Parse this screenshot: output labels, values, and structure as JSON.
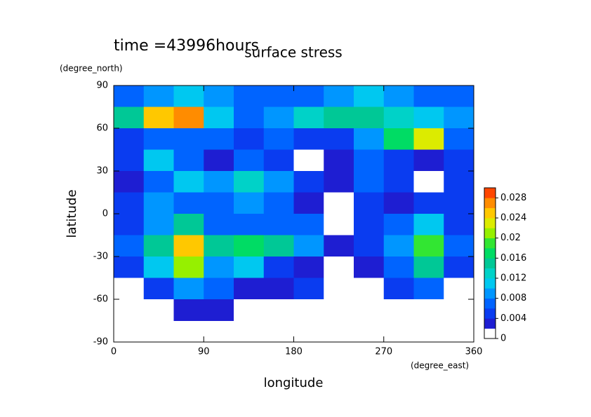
{
  "chart_data": {
    "type": "heatmap",
    "title": "surface stress",
    "subtitle": "time =43996hours",
    "x_label": "longitude",
    "x_unit": "(degree_east)",
    "y_label": "latitude",
    "y_unit": "(degree_north)",
    "xlim": [
      0,
      360
    ],
    "xticks": [
      0,
      90,
      180,
      270,
      360
    ],
    "ylim": [
      -90,
      90
    ],
    "yticks": [
      -90,
      -60,
      -30,
      0,
      30,
      60,
      90
    ],
    "x": [
      15,
      45,
      75,
      105,
      135,
      165,
      195,
      225,
      255,
      285,
      315,
      345
    ],
    "y": [
      82.5,
      67.5,
      52.5,
      37.5,
      22.5,
      7.5,
      -7.5,
      -22.5,
      -37.5,
      -52.5,
      -67.5
    ],
    "z": [
      [
        0.006,
        0.008,
        0.01,
        0.008,
        0.006,
        0.006,
        0.006,
        0.008,
        0.01,
        0.008,
        0.006,
        0.006
      ],
      [
        0.014,
        0.024,
        0.026,
        0.01,
        0.006,
        0.008,
        0.012,
        0.014,
        0.014,
        0.012,
        0.01,
        0.008
      ],
      [
        0.004,
        0.006,
        0.006,
        0.006,
        0.004,
        0.006,
        0.004,
        0.004,
        0.008,
        0.016,
        0.022,
        0.006
      ],
      [
        0.004,
        0.01,
        0.006,
        0.002,
        0.006,
        0.004,
        0,
        0.002,
        0.006,
        0.004,
        0.002,
        0.004
      ],
      [
        0.002,
        0.006,
        0.01,
        0.008,
        0.012,
        0.008,
        0.004,
        0.002,
        0.006,
        0.004,
        0,
        0.004
      ],
      [
        0.004,
        0.008,
        0.006,
        0.006,
        0.008,
        0.006,
        0.002,
        0,
        0.004,
        0.002,
        0.004,
        0.004
      ],
      [
        0.004,
        0.008,
        0.014,
        0.006,
        0.006,
        0.006,
        0.006,
        0,
        0.004,
        0.006,
        0.01,
        0.004
      ],
      [
        0.006,
        0.014,
        0.024,
        0.014,
        0.016,
        0.014,
        0.008,
        0.002,
        0.004,
        0.008,
        0.018,
        0.006
      ],
      [
        0.004,
        0.01,
        0.02,
        0.008,
        0.01,
        0.004,
        0.002,
        0,
        0.002,
        0.006,
        0.014,
        0.004
      ],
      [
        0,
        0.004,
        0.008,
        0.006,
        0.002,
        0.002,
        0.004,
        0,
        0,
        0.004,
        0.006,
        0
      ],
      [
        0,
        0,
        0.002,
        0.002,
        0,
        0,
        0,
        0,
        0,
        0,
        0,
        0
      ]
    ],
    "clim": [
      0,
      0.03
    ],
    "cticks": [
      0,
      0.004,
      0.008,
      0.012,
      0.016,
      0.02,
      0.024,
      0.028
    ],
    "colormap": [
      "#ffffff",
      "#1e1ed2",
      "#0a3cf0",
      "#0064ff",
      "#0096ff",
      "#00c8f0",
      "#00d2c8",
      "#00c896",
      "#00dc64",
      "#32e632",
      "#96f000",
      "#dceb00",
      "#ffc800",
      "#ff8c00",
      "#ff4600"
    ]
  }
}
